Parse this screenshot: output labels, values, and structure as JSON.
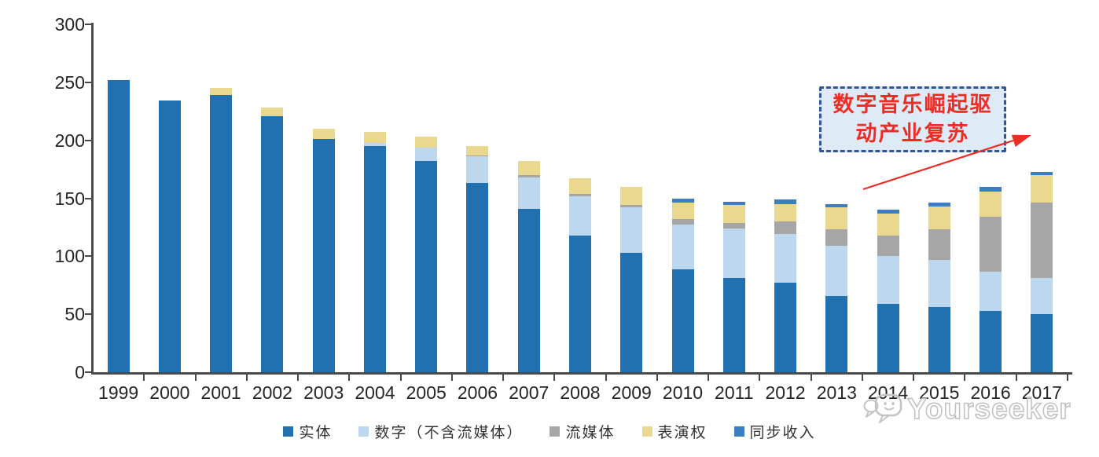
{
  "chart_data": {
    "type": "bar",
    "stacked": true,
    "title": "",
    "xlabel": "",
    "ylabel": "",
    "grid": false,
    "legend_position": "bottom",
    "ylim": [
      0,
      300
    ],
    "yticks": [
      0,
      50,
      100,
      150,
      200,
      250,
      300
    ],
    "categories": [
      "1999",
      "2000",
      "2001",
      "2002",
      "2003",
      "2004",
      "2005",
      "2006",
      "2007",
      "2008",
      "2009",
      "2010",
      "2011",
      "2012",
      "2013",
      "2014",
      "2015",
      "2016",
      "2017"
    ],
    "series": [
      {
        "name": "实体",
        "color": "#2171B0",
        "values": [
          252,
          234,
          239,
          221,
          201,
          195,
          182,
          163,
          141,
          118,
          103,
          89,
          81,
          77,
          66,
          59,
          56,
          53,
          50
        ]
      },
      {
        "name": "数字（不含流媒体）",
        "color": "#BDD7EE",
        "values": [
          0,
          0,
          0,
          0,
          0,
          3,
          12,
          23,
          27,
          34,
          39,
          38,
          43,
          42,
          43,
          41,
          41,
          34,
          31
        ]
      },
      {
        "name": "流媒体",
        "color": "#A6A6A6",
        "values": [
          0,
          0,
          0,
          0,
          0,
          0,
          0,
          1,
          2,
          2,
          2,
          5,
          5,
          11,
          14,
          18,
          26,
          47,
          65
        ]
      },
      {
        "name": "表演权",
        "color": "#EBD88F",
        "values": [
          0,
          0,
          6,
          7,
          9,
          9,
          9,
          8,
          12,
          13,
          16,
          14,
          15,
          15,
          19,
          19,
          20,
          22,
          24
        ]
      },
      {
        "name": "同步收入",
        "color": "#3C7FC0",
        "values": [
          0,
          0,
          0,
          0,
          0,
          0,
          0,
          0,
          0,
          0,
          0,
          4,
          3,
          4,
          3,
          3,
          3,
          4,
          3
        ]
      }
    ]
  },
  "annotation": {
    "line1": "数字音乐崛起驱",
    "line2": "动产业复苏",
    "text_color": "#EC2D25",
    "box_fill": "#DEEBF7",
    "box_border": "#2F5597",
    "arrow_color": "#EC2D25"
  },
  "watermark": {
    "text": "Yourseeker"
  },
  "colors": {
    "axis": "#4a4a4a",
    "tick_label": "#262626"
  }
}
